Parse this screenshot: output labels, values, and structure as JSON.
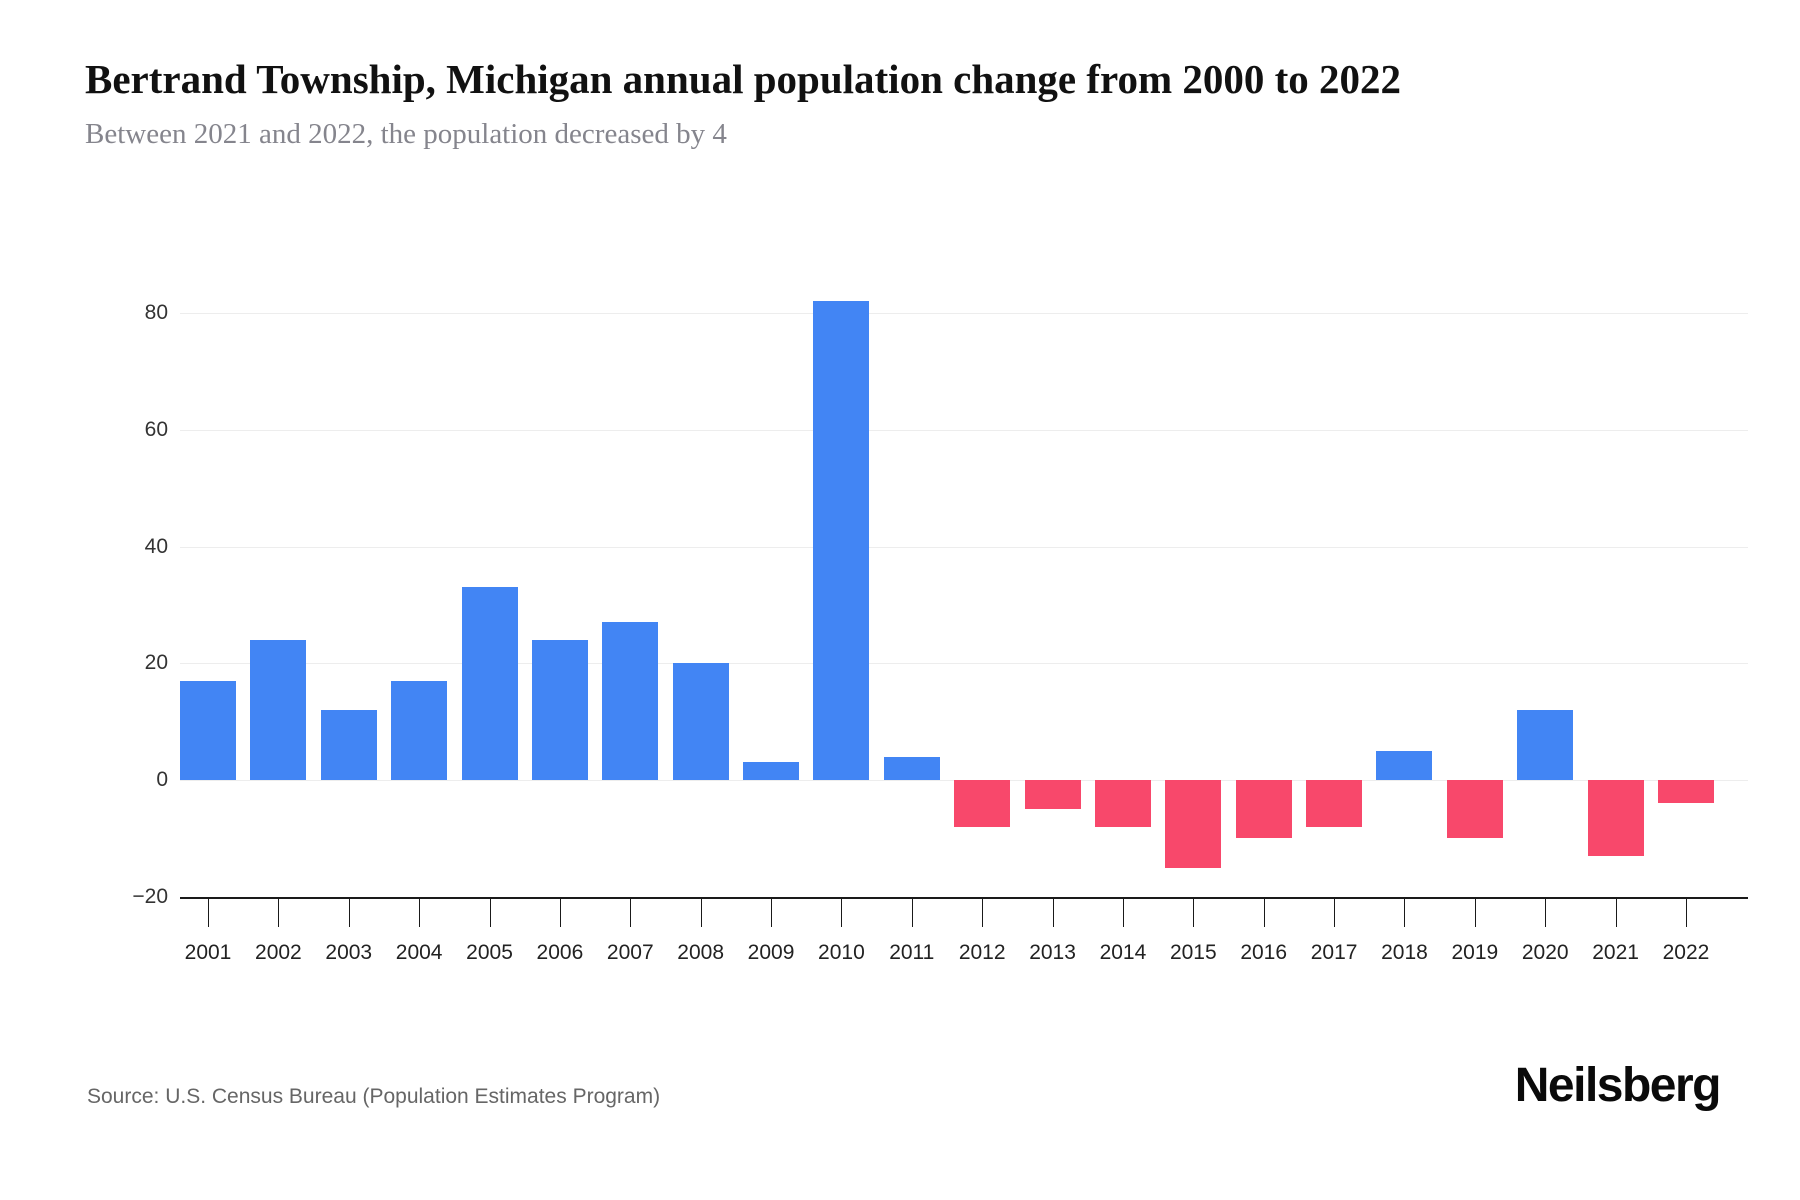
{
  "header": {
    "title": "Bertrand Township, Michigan annual population change from 2000 to 2022",
    "subtitle": "Between 2021 and 2022, the population decreased by 4"
  },
  "footer": {
    "source": "Source: U.S. Census Bureau (Population Estimates Program)",
    "brand": "Neilsberg"
  },
  "colors": {
    "positive_bar": "#4285F4",
    "negative_bar": "#F8486B",
    "gridline": "#ededed",
    "axis": "#1a1a1a",
    "title_text": "#111111",
    "subtitle_text": "#85858d",
    "tick_text": "#333333"
  },
  "chart_data": {
    "type": "bar",
    "title": "Bertrand Township, Michigan annual population change from 2000 to 2022",
    "subtitle": "Between 2021 and 2022, the population decreased by 4",
    "categories": [
      2001,
      2002,
      2003,
      2004,
      2005,
      2006,
      2007,
      2008,
      2009,
      2010,
      2011,
      2012,
      2013,
      2014,
      2015,
      2016,
      2017,
      2018,
      2019,
      2020,
      2021,
      2022
    ],
    "values": [
      17,
      24,
      12,
      17,
      33,
      24,
      27,
      20,
      3,
      82,
      4,
      -8,
      -5,
      -8,
      -15,
      -10,
      -8,
      5,
      -10,
      12,
      -13,
      -4
    ],
    "xlabel": "",
    "ylabel": "",
    "ylim": [
      -20,
      80
    ],
    "yticks": [
      80,
      60,
      40,
      20,
      0,
      -20
    ],
    "grid": true,
    "legend": false,
    "positive_color": "#4285F4",
    "negative_color": "#F8486B"
  }
}
